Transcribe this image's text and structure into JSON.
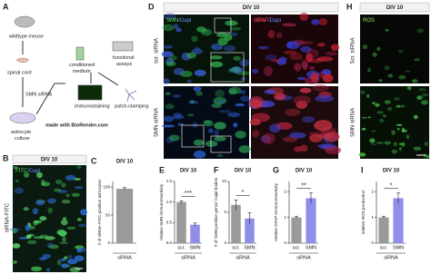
{
  "panel_a": {
    "letter": "A",
    "wildtype": "wildtype mouse",
    "spinal": "spinal cord",
    "sirna": "SMN siRNA",
    "culture": [
      "astrocyte",
      "culture"
    ],
    "medium": [
      "conditioned",
      "medium"
    ],
    "assays": [
      "functional",
      "assays"
    ],
    "immuno": "immunostaining",
    "patch": "patch-clamping",
    "credit": "made with BioRender.com"
  },
  "panel_b": {
    "letter": "B",
    "header": "DIV 10",
    "row": "siRNA-FITC",
    "stain": [
      "FITC",
      "/Dapi"
    ]
  },
  "panel_d": {
    "letter": "D",
    "header": "DIV 10",
    "rows": [
      "scr. siRNA",
      "SMN siRNA"
    ],
    "stains": [
      [
        "SMN",
        "/Dapi"
      ],
      [
        "GFAP",
        "/Dapi"
      ]
    ]
  },
  "panel_h": {
    "letter": "H",
    "header": "DIV 10",
    "rows": [
      "Scr. siRNA",
      "SMN siRNA"
    ],
    "stain": "ROS"
  },
  "charts": [
    {
      "letter": "C",
      "title": "DIV 10",
      "ylabel": "# of siRNA-FITC positive astrocytes",
      "xlabel": "siRNA",
      "categories": [
        null
      ],
      "values": [
        97
      ],
      "errors": [
        2
      ],
      "colors": [
        "#9a9a9a"
      ],
      "ylim": [
        0,
        110
      ],
      "yticks": [
        0,
        50,
        100
      ],
      "significance": null
    },
    {
      "letter": "E",
      "title": "DIV 10",
      "ylabel": "relative SMN immunoreactivity",
      "xlabel": "siRNA",
      "categories": [
        "scr.",
        "SMN"
      ],
      "values": [
        1.0,
        0.45
      ],
      "errors": [
        0.03,
        0.04
      ],
      "colors": [
        "#9a9a9a",
        "#8f8fe8"
      ],
      "ylim": [
        0,
        1.5
      ],
      "yticks": [
        {
          "value": 0,
          "label": "0.0"
        },
        {
          "value": 0.5,
          "label": "0.5"
        },
        {
          "value": 1,
          "label": "1.0"
        },
        {
          "value": 1.5,
          "label": "1.5"
        }
      ],
      "significance": "***"
    },
    {
      "letter": "F",
      "title": "DIV 10",
      "ylabel": "# of SMN positive gems/ Cajal bodies",
      "xlabel": "siRNA",
      "categories": [
        "scr.",
        "SMN"
      ],
      "values": [
        6.2,
        4.0
      ],
      "errors": [
        0.8,
        0.9
      ],
      "colors": [
        "#9a9a9a",
        "#8f8fe8"
      ],
      "ylim": [
        0,
        10
      ],
      "yticks": [
        0,
        5,
        10
      ],
      "significance": "*"
    },
    {
      "letter": "G",
      "title": "DIV 10",
      "ylabel": "relative GFAP immunoreactivity",
      "xlabel": "siRNA",
      "categories": [
        "scr.",
        "SMN"
      ],
      "values": [
        1.0,
        1.75
      ],
      "errors": [
        0.05,
        0.2
      ],
      "colors": [
        "#9a9a9a",
        "#8f8fe8"
      ],
      "ylim": [
        0,
        2.4
      ],
      "yticks": [
        0,
        1,
        2
      ],
      "significance": "**"
    },
    {
      "letter": "I",
      "title": "DIV 10",
      "ylabel": "relative ROS production",
      "xlabel": "siRNA",
      "categories": [
        "scr.",
        "SMN"
      ],
      "values": [
        1.0,
        1.75
      ],
      "errors": [
        0.05,
        0.2
      ],
      "colors": [
        "#9a9a9a",
        "#8f8fe8"
      ],
      "ylim": [
        0,
        2.4
      ],
      "yticks": [
        0,
        1,
        2
      ],
      "significance": "*"
    }
  ]
}
